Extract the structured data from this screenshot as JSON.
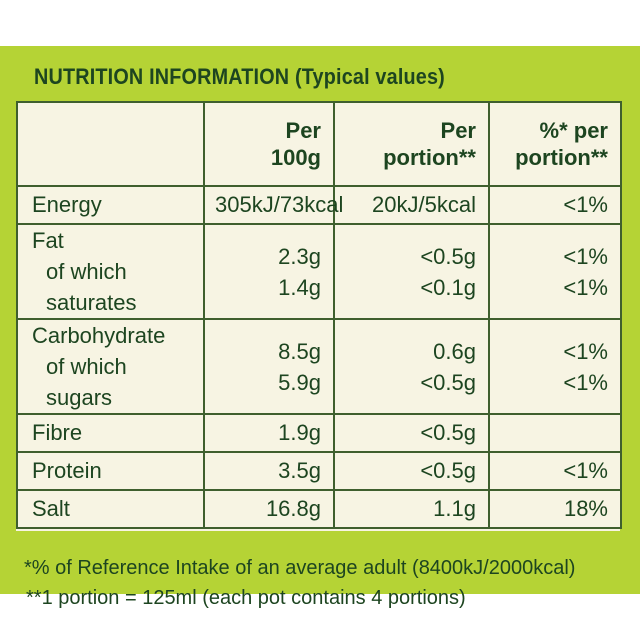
{
  "title": "NUTRITION INFORMATION (Typical values)",
  "headers": {
    "per_100g": [
      "Per",
      "100g"
    ],
    "per_portion": [
      "Per",
      "portion**"
    ],
    "pct_portion": [
      "%* per",
      "portion**"
    ]
  },
  "rows": [
    {
      "label": "Energy",
      "per_100g": "305kJ/73kcal",
      "per_portion": "20kJ/5kcal",
      "pct": "<1%"
    },
    {
      "label": "Fat",
      "sub_label": "of which saturates",
      "per_100g": "2.3g",
      "sub_per_100g": "1.4g",
      "per_portion": "<0.5g",
      "sub_per_portion": "<0.1g",
      "pct": "<1%",
      "sub_pct": "<1%"
    },
    {
      "label": "Carbohydrate",
      "sub_label": "of which sugars",
      "per_100g": "8.5g",
      "sub_per_100g": "5.9g",
      "per_portion": "0.6g",
      "sub_per_portion": "<0.5g",
      "pct": "<1%",
      "sub_pct": "<1%"
    },
    {
      "label": "Fibre",
      "per_100g": "1.9g",
      "per_portion": "<0.5g",
      "pct": ""
    },
    {
      "label": "Protein",
      "per_100g": "3.5g",
      "per_portion": "<0.5g",
      "pct": "<1%"
    },
    {
      "label": "Salt",
      "per_100g": "16.8g",
      "per_portion": "1.1g",
      "pct": "18%"
    }
  ],
  "footnotes": [
    "*% of Reference Intake of an average adult (8400kJ/2000kcal)",
    "**1 portion = 125ml (each pot contains 4 portions)"
  ],
  "colors": {
    "background": "#b5d335",
    "table_fill": "#f7f4e3",
    "text": "#1d4520",
    "border": "#3f5f2e"
  }
}
